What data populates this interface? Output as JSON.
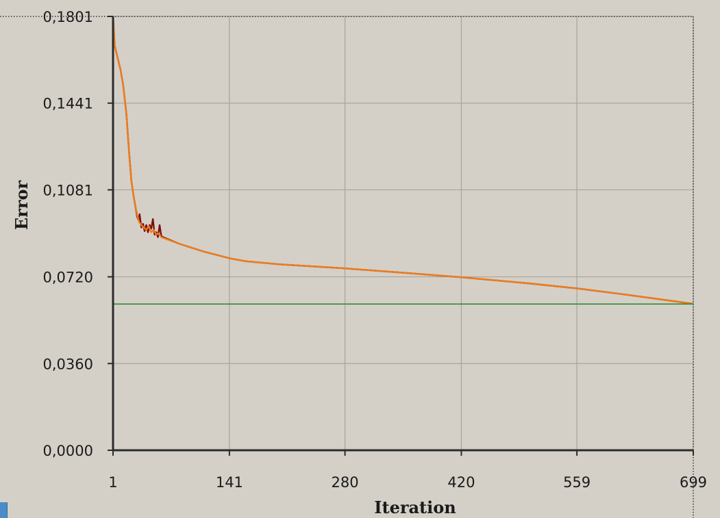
{
  "chart_data": {
    "type": "line",
    "xlabel": "Iteration",
    "ylabel": "Error",
    "xlim": [
      1,
      699
    ],
    "ylim": [
      0.0,
      0.1801
    ],
    "x_ticks": [
      "1",
      "141",
      "280",
      "420",
      "559",
      "699"
    ],
    "x_tick_values": [
      1,
      141,
      280,
      420,
      559,
      699
    ],
    "y_ticks": [
      "0,0000",
      "0,0360",
      "0,0720",
      "0,1081",
      "0,1441",
      "0,1801"
    ],
    "y_tick_values": [
      0.0,
      0.036,
      0.072,
      0.1081,
      0.1441,
      0.1801
    ],
    "grid": true,
    "legend": "none",
    "series": [
      {
        "color": "#7a1010",
        "points": [
          [
            1,
            0.1801
          ],
          [
            3,
            0.168
          ],
          [
            10,
            0.158
          ],
          [
            13,
            0.152
          ],
          [
            17,
            0.14
          ],
          [
            20,
            0.125
          ],
          [
            23,
            0.112
          ],
          [
            26,
            0.105
          ],
          [
            28,
            0.101
          ],
          [
            30,
            0.097
          ],
          [
            31,
            0.096
          ],
          [
            32,
            0.0955
          ],
          [
            33,
            0.098
          ],
          [
            35,
            0.0925
          ],
          [
            37,
            0.094
          ],
          [
            39,
            0.091
          ],
          [
            41,
            0.0935
          ],
          [
            43,
            0.0905
          ],
          [
            45,
            0.0935
          ],
          [
            47,
            0.092
          ],
          [
            49,
            0.096
          ],
          [
            51,
            0.0895
          ],
          [
            53,
            0.0905
          ],
          [
            55,
            0.0885
          ],
          [
            57,
            0.0935
          ],
          [
            59,
            0.089
          ],
          [
            61,
            0.0885
          ],
          [
            80,
            0.0858
          ],
          [
            110,
            0.0825
          ],
          [
            141,
            0.0797
          ],
          [
            160,
            0.0785
          ],
          [
            200,
            0.0772
          ],
          [
            280,
            0.0755
          ],
          [
            350,
            0.0737
          ],
          [
            420,
            0.0718
          ],
          [
            500,
            0.0693
          ],
          [
            559,
            0.0672
          ],
          [
            620,
            0.0645
          ],
          [
            699,
            0.0608
          ]
        ]
      },
      {
        "color": "#f07c1a",
        "points": [
          [
            1,
            0.1801
          ],
          [
            3,
            0.168
          ],
          [
            10,
            0.158
          ],
          [
            13,
            0.152
          ],
          [
            17,
            0.14
          ],
          [
            20,
            0.125
          ],
          [
            23,
            0.112
          ],
          [
            26,
            0.105
          ],
          [
            28,
            0.101
          ],
          [
            30,
            0.098
          ],
          [
            32,
            0.095
          ],
          [
            35,
            0.0935
          ],
          [
            38,
            0.0925
          ],
          [
            41,
            0.0915
          ],
          [
            44,
            0.093
          ],
          [
            47,
            0.0905
          ],
          [
            50,
            0.0915
          ],
          [
            53,
            0.0895
          ],
          [
            56,
            0.09
          ],
          [
            59,
            0.0885
          ],
          [
            61,
            0.0882
          ],
          [
            80,
            0.0858
          ],
          [
            110,
            0.0825
          ],
          [
            141,
            0.0797
          ],
          [
            160,
            0.0785
          ],
          [
            200,
            0.0772
          ],
          [
            280,
            0.0755
          ],
          [
            350,
            0.0737
          ],
          [
            420,
            0.0718
          ],
          [
            500,
            0.0693
          ],
          [
            559,
            0.0672
          ],
          [
            620,
            0.0645
          ],
          [
            699,
            0.0608
          ]
        ]
      },
      {
        "color": "#2e8a2e",
        "points": [
          [
            1,
            0.0607
          ],
          [
            699,
            0.0607
          ]
        ]
      }
    ]
  }
}
